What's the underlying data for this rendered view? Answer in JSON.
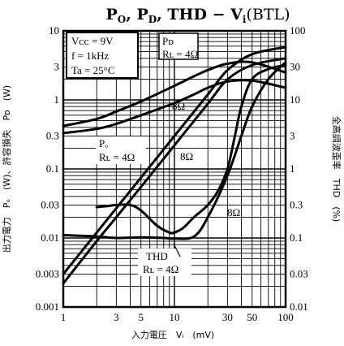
{
  "chart_data": {
    "type": "line",
    "title": "Pₒ, Pᴅ, THD − Vᵢ (BTL)",
    "title_parts": {
      "p": "P",
      "o": "O",
      "comma1": ", ",
      "d": "D",
      "comma2": ", ",
      "thd": "THD − V",
      "i": "i",
      "btl": "(BTL)"
    },
    "xlabel": "入力電圧　Vᵢ　(mV)",
    "ylabel_left": "出力電力　Pₒ　(W)、許容損失　Pᴅ　(W)",
    "ylabel_right": "全高調波歪率　THD　(%)",
    "x_scale": "log",
    "y_scale": "log",
    "y2_scale": "log",
    "xlim": [
      1,
      100
    ],
    "ylim": [
      0.001,
      10
    ],
    "y2lim": [
      0.01,
      100
    ],
    "grid": true,
    "xticks": [
      "1",
      "3",
      "5",
      "10",
      "30",
      "50",
      "100"
    ],
    "yticks_left": [
      "0.001",
      "0.003",
      "0.01",
      "0.03",
      "0.1",
      "0.3",
      "1",
      "3",
      "10"
    ],
    "yticks_right": [
      "0.01",
      "0.03",
      "0.1",
      "0.3",
      "1",
      "3",
      "10",
      "30",
      "100"
    ],
    "conditions": {
      "vcc": "Vᴄᴄ = 9V",
      "freq": "f = 1kHz",
      "ta": "Ta = 25°C"
    },
    "annotations": {
      "pd_label": "Pᴅ",
      "pd_rl": "Rʟ = 4Ω",
      "pd_8": "8Ω",
      "po_label": "Pₒ",
      "po_rl": "Rʟ = 4Ω",
      "po_8": "8Ω",
      "thd_label": "THD",
      "thd_rl": "Rʟ = 4Ω",
      "thd_8": "8Ω"
    },
    "series": [
      {
        "name": "Pₒ Rʟ=4Ω",
        "axis": "left",
        "x": [
          1,
          2,
          3,
          5,
          10,
          20,
          30,
          50,
          100
        ],
        "y": [
          0.003,
          0.012,
          0.027,
          0.075,
          0.3,
          1.2,
          2.7,
          4.6,
          5.8
        ]
      },
      {
        "name": "Pₒ Rʟ=8Ω",
        "axis": "left",
        "x": [
          1,
          2,
          3,
          5,
          10,
          20,
          30,
          50,
          100
        ],
        "y": [
          0.0022,
          0.009,
          0.02,
          0.055,
          0.22,
          0.88,
          1.98,
          3.2,
          4.0
        ]
      },
      {
        "name": "Pᴅ Rʟ=4Ω",
        "axis": "left",
        "x": [
          1,
          2,
          3,
          5,
          10,
          15,
          20,
          30,
          50,
          100
        ],
        "y": [
          0.42,
          0.53,
          0.68,
          0.95,
          1.6,
          2.2,
          2.7,
          3.35,
          3.5,
          2.5
        ]
      },
      {
        "name": "Pᴅ Rʟ=8Ω",
        "axis": "left",
        "x": [
          1,
          2,
          3,
          5,
          10,
          15,
          20,
          30,
          50,
          100
        ],
        "y": [
          0.33,
          0.38,
          0.45,
          0.6,
          0.9,
          1.2,
          1.5,
          1.85,
          1.9,
          1.5
        ]
      },
      {
        "name": "THD Rʟ=4Ω",
        "axis": "right",
        "x": [
          1,
          2,
          3,
          5,
          8,
          10,
          15,
          20,
          30,
          40,
          50,
          70,
          100
        ],
        "y": [
          0.11,
          0.105,
          0.1,
          0.102,
          0.1,
          0.098,
          0.105,
          0.2,
          0.8,
          3,
          8,
          20,
          35
        ]
      },
      {
        "name": "THD Rʟ=8Ω",
        "axis": "right",
        "x": [
          2,
          2.5,
          3,
          4,
          5,
          7,
          9,
          10,
          12,
          15,
          20,
          25,
          30,
          35,
          40,
          50,
          70,
          100
        ],
        "y": [
          0.28,
          0.29,
          0.3,
          0.3,
          0.25,
          0.15,
          0.12,
          0.12,
          0.14,
          0.2,
          0.3,
          0.5,
          1,
          3,
          8,
          20,
          28,
          32
        ]
      }
    ]
  }
}
